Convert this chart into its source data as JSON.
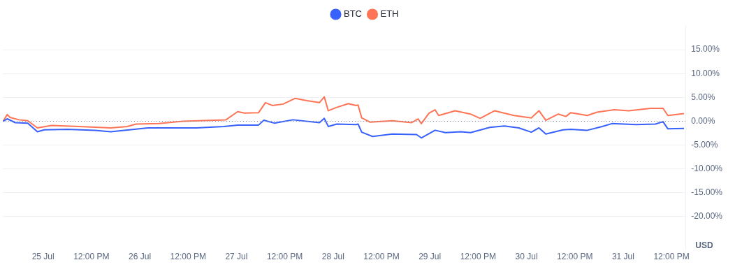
{
  "chart_data": {
    "type": "line",
    "legend": "top",
    "marker": "none",
    "grid": "y",
    "annotations": [
      "USD"
    ],
    "xlim": [
      "--07-24T14:00",
      "--07-31T15:30"
    ],
    "xticks": [
      {
        "value": "--07-25",
        "label": "25 Jul"
      },
      {
        "value": "--07-25T12:00",
        "label": "12:00 PM"
      },
      {
        "value": "--07-26",
        "label": "26 Jul"
      },
      {
        "value": "--07-26T12:00",
        "label": "12:00 PM"
      },
      {
        "value": "--07-27",
        "label": "27 Jul"
      },
      {
        "value": "--07-27T12:00",
        "label": "12:00 PM"
      },
      {
        "value": "--07-28",
        "label": "28 Jul"
      },
      {
        "value": "--07-28T12:00",
        "label": "12:00 PM"
      },
      {
        "value": "--07-29",
        "label": "29 Jul"
      },
      {
        "value": "--07-29T12:00",
        "label": "12:00 PM"
      },
      {
        "value": "--07-30",
        "label": "30 Jul"
      },
      {
        "value": "--07-30T12:00",
        "label": "12:00 PM"
      },
      {
        "value": "--07-31",
        "label": "31 Jul"
      },
      {
        "value": "--07-31T12:00",
        "label": "12:00 PM"
      }
    ],
    "ylim": [
      -27,
      20
    ],
    "yticks": [
      {
        "value": -20,
        "label": "-20.00%"
      },
      {
        "value": -15,
        "label": "-15.00%"
      },
      {
        "value": -10,
        "label": "-10.00%"
      },
      {
        "value": -5,
        "label": "-5.00%"
      },
      {
        "value": 0,
        "label": "0.00%"
      },
      {
        "value": 5,
        "label": "5.00%"
      },
      {
        "value": 10,
        "label": "10.00%"
      },
      {
        "value": 15,
        "label": "15.00%"
      }
    ],
    "ref_lines": [
      {
        "axis": "y",
        "value": 0,
        "color": "#808a9d",
        "line_style": "dotted"
      }
    ],
    "series": [
      {
        "name": "BTC",
        "color": "#3861fb",
        "x": [
          "--07-24T14:06",
          "--07-24T15:06",
          "--07-24T17:06",
          "--07-24T20:12",
          "--07-24T22:36",
          "--07-25T00:18",
          "--07-25T06:00",
          "--07-25T12:54",
          "--07-25T16:48",
          "--07-26T02:00",
          "--07-26T14:06",
          "--07-26T20:54",
          "--07-27T00:18",
          "--07-27T05:30",
          "--07-27T06:48",
          "--07-27T09:24",
          "--07-27T14:00",
          "--07-27T20:36",
          "--07-27T21:48",
          "--07-27T22:48",
          "--07-28T00:54",
          "--07-28T05:42",
          "--07-28T06:12",
          "--07-28T07:06",
          "--07-28T09:48",
          "--07-28T14:42",
          "--07-28T20:42",
          "--07-28T21:54",
          "--07-29T01:18",
          "--07-29T03:54",
          "--07-29T07:42",
          "--07-29T10:06",
          "--07-29T14:54",
          "--07-29T18:30",
          "--07-29T22:06",
          "--07-30T01:12",
          "--07-30T03:06",
          "--07-30T04:48",
          "--07-30T09:06",
          "--07-30T11:00",
          "--07-30T15:06",
          "--07-30T18:48",
          "--07-30T21:12",
          "--07-31T03:12",
          "--07-31T08:00",
          "--07-31T09:54",
          "--07-31T11:06",
          "--07-31T15:06"
        ],
        "values": [
          0.0,
          0.5,
          -0.3,
          -0.4,
          -2.2,
          -1.8,
          -1.7,
          -1.9,
          -2.2,
          -1.4,
          -1.4,
          -1.1,
          -0.8,
          -0.8,
          0.2,
          -0.4,
          0.3,
          -0.3,
          0.6,
          -1.1,
          -0.6,
          -0.7,
          -0.6,
          -2.3,
          -3.2,
          -2.7,
          -2.8,
          -3.5,
          -1.9,
          -2.4,
          -2.2,
          -2.4,
          -1.3,
          -1.0,
          -1.4,
          -2.3,
          -1.4,
          -2.7,
          -1.8,
          -1.7,
          -1.9,
          -1.1,
          -0.5,
          -0.7,
          -0.6,
          -0.1,
          -1.6,
          -1.5
        ]
      },
      {
        "name": "ETH",
        "color": "#fe7456",
        "x": [
          "--07-24T14:06",
          "--07-24T15:06",
          "--07-24T15:48",
          "--07-24T18:00",
          "--07-24T20:12",
          "--07-24T22:36",
          "--07-25T02:06",
          "--07-25T08:54",
          "--07-25T16:48",
          "--07-25T20:54",
          "--07-25T23:06",
          "--07-26T04:48",
          "--07-26T10:36",
          "--07-26T14:36",
          "--07-26T21:24",
          "--07-27T00:18",
          "--07-27T02:00",
          "--07-27T05:30",
          "--07-27T07:12",
          "--07-27T08:54",
          "--07-27T11:36",
          "--07-27T14:36",
          "--07-27T17:30",
          "--07-27T20:36",
          "--07-27T21:48",
          "--07-27T22:48",
          "--07-28T00:54",
          "--07-28T03:48",
          "--07-28T05:42",
          "--07-28T06:12",
          "--07-28T07:06",
          "--07-28T09:12",
          "--07-28T14:42",
          "--07-28T19:30",
          "--07-28T21:06",
          "--07-28T21:54",
          "--07-28T23:48",
          "--07-29T01:18",
          "--07-29T02:12",
          "--07-29T06:18",
          "--07-29T10:06",
          "--07-29T12:30",
          "--07-29T16:06",
          "--07-29T20:54",
          "--07-30T01:12",
          "--07-30T03:06",
          "--07-30T04:48",
          "--07-30T07:54",
          "--07-30T09:48",
          "--07-30T11:00",
          "--07-30T15:06",
          "--07-30T17:30",
          "--07-30T21:48",
          "--07-31T01:24",
          "--07-31T06:48",
          "--07-31T09:54",
          "--07-31T11:06",
          "--07-31T15:06"
        ],
        "values": [
          0.0,
          1.4,
          0.8,
          0.3,
          0.1,
          -1.4,
          -0.9,
          -1.1,
          -1.4,
          -1.1,
          -0.6,
          -0.5,
          0,
          0.1,
          0.3,
          2.0,
          1.7,
          1.8,
          3.9,
          3.3,
          3.6,
          4.8,
          4.3,
          3.9,
          5.1,
          2.2,
          2.9,
          3.7,
          3.3,
          3.4,
          0.7,
          -0.2,
          0.1,
          -0.3,
          0.5,
          -0.5,
          1.7,
          2.4,
          1.2,
          2.2,
          1.5,
          0.6,
          2.2,
          1.2,
          0.7,
          2.2,
          0.2,
          1.5,
          1.0,
          1.8,
          1.2,
          1.9,
          2.4,
          2.2,
          2.7,
          2.7,
          1.2,
          1.6
        ]
      }
    ]
  }
}
